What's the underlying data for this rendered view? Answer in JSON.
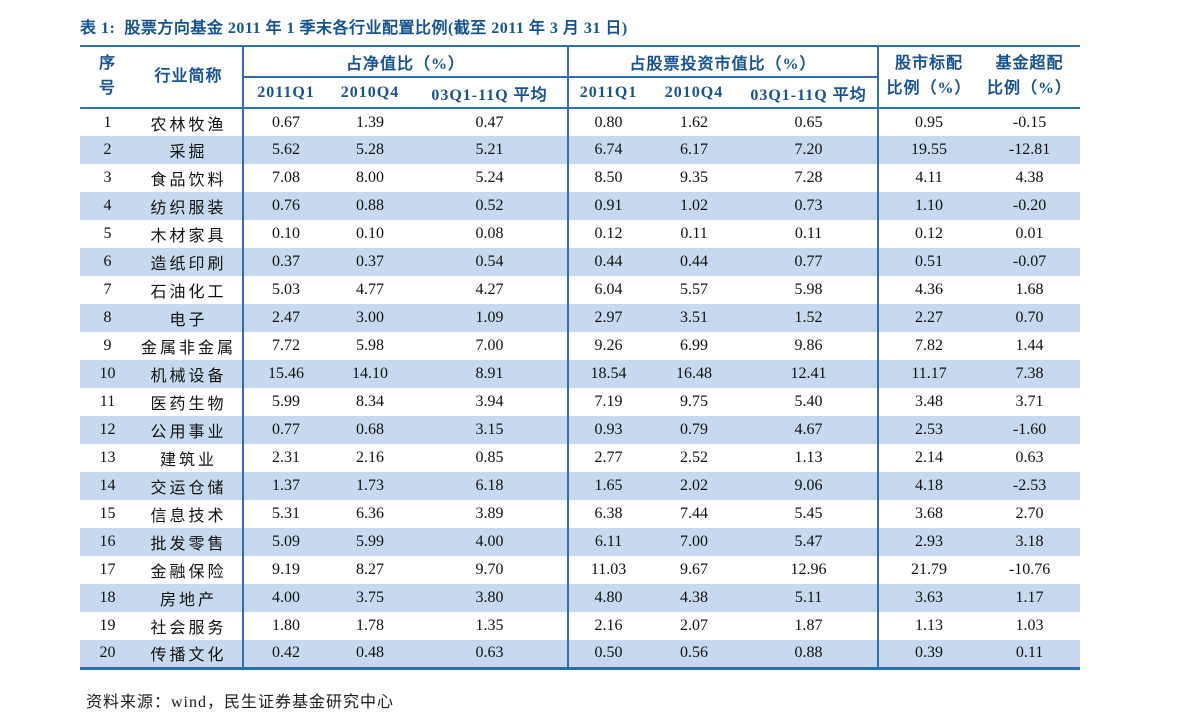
{
  "title": "表 1:  股票方向基金 2011 年 1 季末各行业配置比例(截至 2011 年 3 月 31 日)",
  "header": {
    "seq_line1": "序",
    "seq_line2": "号",
    "industry": "行业简称",
    "group_net": "占净值比（%）",
    "group_stock": "占股票投资市值比（%）",
    "sub_net": [
      "2011Q1",
      "2010Q4",
      "03Q1-11Q 平均"
    ],
    "sub_stock": [
      "2011Q1",
      "2010Q4",
      "03Q1-11Q 平均"
    ],
    "std_line1": "股市标配",
    "std_line2": "比例（%）",
    "over_line1": "基金超配",
    "over_line2": "比例（%）"
  },
  "chart_data": {
    "type": "table",
    "title": "表 1: 股票方向基金 2011 年 1 季末各行业配置比例(截至 2011 年 3 月 31 日)",
    "columns": [
      "序号",
      "行业简称",
      "占净值比 2011Q1",
      "占净值比 2010Q4",
      "占净值比 03Q1-11Q 平均",
      "占股票投资市值比 2011Q1",
      "占股票投资市值比 2010Q4",
      "占股票投资市值比 03Q1-11Q 平均",
      "股市标配比例（%）",
      "基金超配比例（%）"
    ]
  },
  "rows": [
    {
      "no": "1",
      "industry": "农林牧渔",
      "net": [
        "0.67",
        "1.39",
        "0.47"
      ],
      "stock": [
        "0.80",
        "1.62",
        "0.65"
      ],
      "std": "0.95",
      "over": "-0.15"
    },
    {
      "no": "2",
      "industry": "采掘",
      "net": [
        "5.62",
        "5.28",
        "5.21"
      ],
      "stock": [
        "6.74",
        "6.17",
        "7.20"
      ],
      "std": "19.55",
      "over": "-12.81"
    },
    {
      "no": "3",
      "industry": "食品饮料",
      "net": [
        "7.08",
        "8.00",
        "5.24"
      ],
      "stock": [
        "8.50",
        "9.35",
        "7.28"
      ],
      "std": "4.11",
      "over": "4.38"
    },
    {
      "no": "4",
      "industry": "纺织服装",
      "net": [
        "0.76",
        "0.88",
        "0.52"
      ],
      "stock": [
        "0.91",
        "1.02",
        "0.73"
      ],
      "std": "1.10",
      "over": "-0.20"
    },
    {
      "no": "5",
      "industry": "木材家具",
      "net": [
        "0.10",
        "0.10",
        "0.08"
      ],
      "stock": [
        "0.12",
        "0.11",
        "0.11"
      ],
      "std": "0.12",
      "over": "0.01"
    },
    {
      "no": "6",
      "industry": "造纸印刷",
      "net": [
        "0.37",
        "0.37",
        "0.54"
      ],
      "stock": [
        "0.44",
        "0.44",
        "0.77"
      ],
      "std": "0.51",
      "over": "-0.07"
    },
    {
      "no": "7",
      "industry": "石油化工",
      "net": [
        "5.03",
        "4.77",
        "4.27"
      ],
      "stock": [
        "6.04",
        "5.57",
        "5.98"
      ],
      "std": "4.36",
      "over": "1.68"
    },
    {
      "no": "8",
      "industry": "电子",
      "net": [
        "2.47",
        "3.00",
        "1.09"
      ],
      "stock": [
        "2.97",
        "3.51",
        "1.52"
      ],
      "std": "2.27",
      "over": "0.70"
    },
    {
      "no": "9",
      "industry": "金属非金属",
      "net": [
        "7.72",
        "5.98",
        "7.00"
      ],
      "stock": [
        "9.26",
        "6.99",
        "9.86"
      ],
      "std": "7.82",
      "over": "1.44"
    },
    {
      "no": "10",
      "industry": "机械设备",
      "net": [
        "15.46",
        "14.10",
        "8.91"
      ],
      "stock": [
        "18.54",
        "16.48",
        "12.41"
      ],
      "std": "11.17",
      "over": "7.38"
    },
    {
      "no": "11",
      "industry": "医药生物",
      "net": [
        "5.99",
        "8.34",
        "3.94"
      ],
      "stock": [
        "7.19",
        "9.75",
        "5.40"
      ],
      "std": "3.48",
      "over": "3.71"
    },
    {
      "no": "12",
      "industry": "公用事业",
      "net": [
        "0.77",
        "0.68",
        "3.15"
      ],
      "stock": [
        "0.93",
        "0.79",
        "4.67"
      ],
      "std": "2.53",
      "over": "-1.60"
    },
    {
      "no": "13",
      "industry": "建筑业",
      "net": [
        "2.31",
        "2.16",
        "0.85"
      ],
      "stock": [
        "2.77",
        "2.52",
        "1.13"
      ],
      "std": "2.14",
      "over": "0.63"
    },
    {
      "no": "14",
      "industry": "交运仓储",
      "net": [
        "1.37",
        "1.73",
        "6.18"
      ],
      "stock": [
        "1.65",
        "2.02",
        "9.06"
      ],
      "std": "4.18",
      "over": "-2.53"
    },
    {
      "no": "15",
      "industry": "信息技术",
      "net": [
        "5.31",
        "6.36",
        "3.89"
      ],
      "stock": [
        "6.38",
        "7.44",
        "5.45"
      ],
      "std": "3.68",
      "over": "2.70"
    },
    {
      "no": "16",
      "industry": "批发零售",
      "net": [
        "5.09",
        "5.99",
        "4.00"
      ],
      "stock": [
        "6.11",
        "7.00",
        "5.47"
      ],
      "std": "2.93",
      "over": "3.18"
    },
    {
      "no": "17",
      "industry": "金融保险",
      "net": [
        "9.19",
        "8.27",
        "9.70"
      ],
      "stock": [
        "11.03",
        "9.67",
        "12.96"
      ],
      "std": "21.79",
      "over": "-10.76"
    },
    {
      "no": "18",
      "industry": "房地产",
      "net": [
        "4.00",
        "3.75",
        "3.80"
      ],
      "stock": [
        "4.80",
        "4.38",
        "5.11"
      ],
      "std": "3.63",
      "over": "1.17"
    },
    {
      "no": "19",
      "industry": "社会服务",
      "net": [
        "1.80",
        "1.78",
        "1.35"
      ],
      "stock": [
        "2.16",
        "2.07",
        "1.87"
      ],
      "std": "1.13",
      "over": "1.03"
    },
    {
      "no": "20",
      "industry": "传播文化",
      "net": [
        "0.42",
        "0.48",
        "0.63"
      ],
      "stock": [
        "0.50",
        "0.56",
        "0.88"
      ],
      "std": "0.39",
      "over": "0.11"
    }
  ],
  "source": "资料来源：wind，民生证券基金研究中心",
  "colors": {
    "header_text": "#17548f",
    "border_blue": "#2f6eb0",
    "stripe": "#c6d9ee",
    "body_text": "#111111"
  }
}
